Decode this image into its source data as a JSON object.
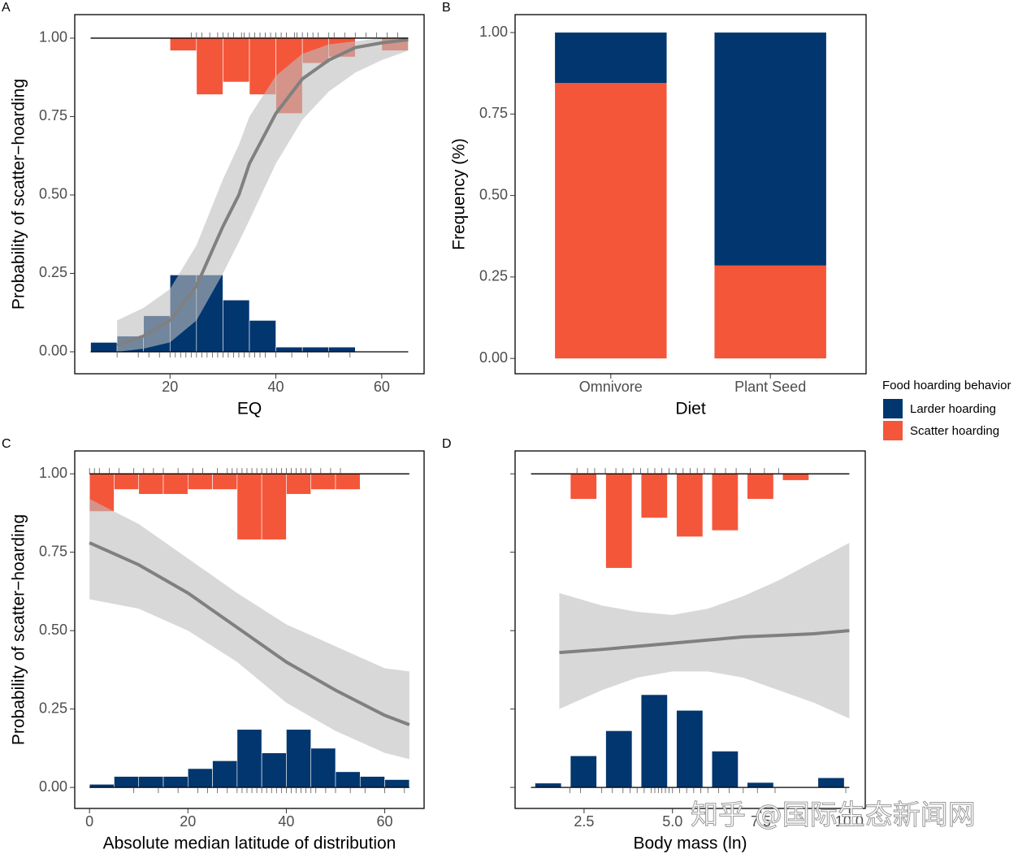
{
  "chart_data": [
    {
      "type": "logistic",
      "title": "A",
      "xlabel": "EQ",
      "ylabel": "Probability of scatter−hoarding",
      "xlim": [
        2,
        68
      ],
      "xticks": [
        20,
        40,
        60
      ],
      "ylim": [
        -0.07,
        1.075
      ],
      "yticks": [
        {
          "value": 0,
          "label": "0.00"
        },
        {
          "value": 0.25,
          "label": "0.25"
        },
        {
          "value": 0.5,
          "label": "0.50"
        },
        {
          "value": 0.75,
          "label": "0.75"
        },
        {
          "value": 1,
          "label": "1.00"
        }
      ],
      "larder": {
        "color": "#02366f",
        "bins": [
          5,
          10,
          15,
          20,
          25,
          30,
          35,
          40,
          45,
          50,
          55
        ],
        "values": [
          0.03,
          0.05,
          0.115,
          0.245,
          0.245,
          0.165,
          0.1,
          0.015,
          0.015,
          0.015
        ]
      },
      "scatter": {
        "color": "#f4563a",
        "bins": [
          20,
          25,
          30,
          35,
          40,
          45,
          50,
          55,
          60,
          65
        ],
        "values": [
          0.96,
          0.82,
          0.86,
          0.82,
          0.76,
          0.92,
          0.94,
          null,
          0.96
        ]
      },
      "curve": {
        "color": "#808080",
        "band_color": "#bebebe",
        "x": [
          10,
          15,
          20,
          25,
          30,
          33,
          35,
          40,
          45,
          50,
          55,
          60,
          65
        ],
        "y": [
          0.02,
          0.05,
          0.1,
          0.21,
          0.4,
          0.5,
          0.6,
          0.76,
          0.87,
          0.93,
          0.97,
          0.985,
          0.995
        ],
        "lower": [
          0.0,
          0.01,
          0.03,
          0.1,
          0.25,
          0.35,
          0.42,
          0.6,
          0.74,
          0.83,
          0.89,
          0.93,
          0.96
        ],
        "upper": [
          0.1,
          0.14,
          0.2,
          0.34,
          0.55,
          0.66,
          0.75,
          0.88,
          0.95,
          0.98,
          0.99,
          1.0,
          1.0
        ]
      },
      "rug_top": [
        24,
        25,
        26,
        27.5,
        29,
        30,
        31,
        32,
        33.5,
        34,
        35,
        36,
        37,
        38,
        39,
        40,
        41,
        42,
        43.5,
        44,
        45,
        46,
        47,
        48,
        50,
        51,
        53,
        55,
        57,
        59,
        61,
        63
      ],
      "rug_bottom": [
        10,
        14,
        16,
        18,
        20,
        21,
        22,
        23,
        24,
        25,
        26,
        27,
        28,
        29,
        30,
        31,
        32,
        33,
        34,
        35,
        36,
        37,
        38,
        40,
        43,
        46,
        50,
        54
      ]
    },
    {
      "type": "bar",
      "title": "B",
      "xlabel": "Diet",
      "ylabel": "Frequency (%)",
      "categories": [
        "Omnivore",
        "Plant Seed"
      ],
      "ylim": [
        -0.047,
        1.055
      ],
      "yticks": [
        {
          "value": 0,
          "label": "0.00"
        },
        {
          "value": 0.25,
          "label": "0.25"
        },
        {
          "value": 0.5,
          "label": "0.50"
        },
        {
          "value": 0.75,
          "label": "0.75"
        },
        {
          "value": 1,
          "label": "1.00"
        }
      ],
      "legend_title": "Food hoarding behavior",
      "legend": "right",
      "series": [
        {
          "name": "Larder hoarding",
          "color": "#02366f",
          "values": [
            0.155,
            0.715
          ]
        },
        {
          "name": "Scatter hoarding",
          "color": "#f4563a",
          "values": [
            0.845,
            0.285
          ]
        }
      ]
    },
    {
      "type": "logistic",
      "title": "C",
      "xlabel": "Absolute median latitude of distribution",
      "ylabel": "Probability of scatter−hoarding",
      "xlim": [
        -3,
        68
      ],
      "xticks": [
        0,
        20,
        40,
        60
      ],
      "ylim": [
        -0.067,
        1.073
      ],
      "yticks": [
        {
          "value": 0,
          "label": "0.00"
        },
        {
          "value": 0.25,
          "label": "0.25"
        },
        {
          "value": 0.5,
          "label": "0.50"
        },
        {
          "value": 0.75,
          "label": "0.75"
        },
        {
          "value": 1,
          "label": "1.00"
        }
      ],
      "larder": {
        "color": "#02366f",
        "bins": [
          0,
          5,
          10,
          15,
          20,
          25,
          30,
          35,
          40,
          45,
          50,
          55,
          60,
          65
        ],
        "values": [
          0.01,
          0.035,
          0.035,
          0.035,
          0.06,
          0.085,
          0.185,
          0.11,
          0.185,
          0.125,
          0.05,
          0.035,
          0.025
        ]
      },
      "scatter": {
        "color": "#f4563a",
        "bins": [
          0,
          5,
          10,
          15,
          20,
          25,
          30,
          35,
          40,
          45,
          50,
          55,
          60,
          65
        ],
        "values": [
          0.88,
          0.95,
          0.935,
          0.935,
          0.95,
          0.95,
          0.79,
          0.79,
          0.935,
          0.95,
          0.95,
          null,
          null
        ]
      },
      "curve": {
        "color": "#808080",
        "band_color": "#bebebe",
        "x": [
          0,
          10,
          20,
          30,
          40,
          50,
          60,
          65
        ],
        "y": [
          0.78,
          0.71,
          0.62,
          0.51,
          0.4,
          0.31,
          0.23,
          0.2
        ],
        "lower": [
          0.6,
          0.57,
          0.5,
          0.4,
          0.27,
          0.18,
          0.11,
          0.09
        ],
        "upper": [
          0.92,
          0.84,
          0.73,
          0.62,
          0.52,
          0.45,
          0.38,
          0.37
        ]
      },
      "rug_top": [
        0,
        1,
        2,
        4,
        6,
        9,
        11,
        13,
        15,
        18,
        21,
        23,
        26,
        28,
        29,
        30,
        31,
        32,
        33,
        34,
        35,
        36,
        37,
        38,
        39,
        40,
        41,
        42,
        43,
        44,
        45,
        47,
        49,
        51
      ],
      "rug_bottom": [
        9,
        14,
        18,
        22,
        24,
        26,
        28,
        30,
        31,
        32,
        33,
        34,
        35,
        36,
        37,
        38,
        39,
        40,
        41,
        42,
        43,
        44,
        45,
        46,
        48,
        50,
        53,
        56,
        60,
        64
      ]
    },
    {
      "type": "logistic",
      "title": "D",
      "xlabel": "Body mass (ln)",
      "ytick_labels": false,
      "gaps": true,
      "xlim": [
        0.55,
        10.45
      ],
      "xticks": [
        2.5,
        {
          "value": 5,
          "label": "5.0"
        },
        7.5,
        {
          "value": 10,
          "label": "10.0"
        }
      ],
      "ylim": [
        -0.067,
        1.073
      ],
      "yticks": [
        0,
        0.25,
        0.5,
        0.75,
        1
      ],
      "larder": {
        "color": "#02366f",
        "bins": [
          1,
          2,
          3,
          4,
          5,
          6,
          7,
          8,
          9,
          10
        ],
        "values": [
          0.013,
          0.1,
          0.18,
          0.295,
          0.245,
          0.115,
          0.015,
          null,
          0.03
        ]
      },
      "scatter": {
        "color": "#f4563a",
        "bins": [
          1,
          2,
          3,
          4,
          5,
          6,
          7,
          8,
          9,
          10
        ],
        "values": [
          null,
          0.92,
          0.7,
          0.86,
          0.8,
          0.82,
          0.92,
          0.98,
          null
        ]
      },
      "curve": {
        "color": "#808080",
        "band_color": "#bebebe",
        "x": [
          1.8,
          3,
          4,
          5,
          6,
          7,
          8,
          9,
          10
        ],
        "y": [
          0.43,
          0.44,
          0.45,
          0.46,
          0.47,
          0.48,
          0.485,
          0.49,
          0.5
        ],
        "lower": [
          0.25,
          0.31,
          0.35,
          0.37,
          0.37,
          0.35,
          0.31,
          0.27,
          0.22
        ],
        "upper": [
          0.62,
          0.58,
          0.56,
          0.55,
          0.57,
          0.61,
          0.66,
          0.72,
          0.78
        ]
      },
      "rug_top": [
        2.3,
        2.6,
        2.8,
        3.1,
        3.4,
        3.6,
        3.9,
        4.1,
        4.3,
        4.5,
        4.7,
        4.9,
        5.1,
        5.3,
        5.5,
        5.7,
        5.9,
        6.2,
        6.5,
        6.8,
        7.2,
        7.6,
        8.0
      ],
      "rug_bottom": [
        2.1,
        2.4,
        3.0,
        3.3,
        3.6,
        3.8,
        4.0,
        4.2,
        4.4,
        4.5,
        4.6,
        4.7,
        4.8,
        4.9,
        5.0,
        5.2,
        5.4,
        5.6,
        5.8,
        6.0,
        6.3,
        6.6,
        7.0,
        7.4,
        7.9,
        9.9
      ]
    }
  ],
  "watermark": "知乎 @国际生态新闻网"
}
